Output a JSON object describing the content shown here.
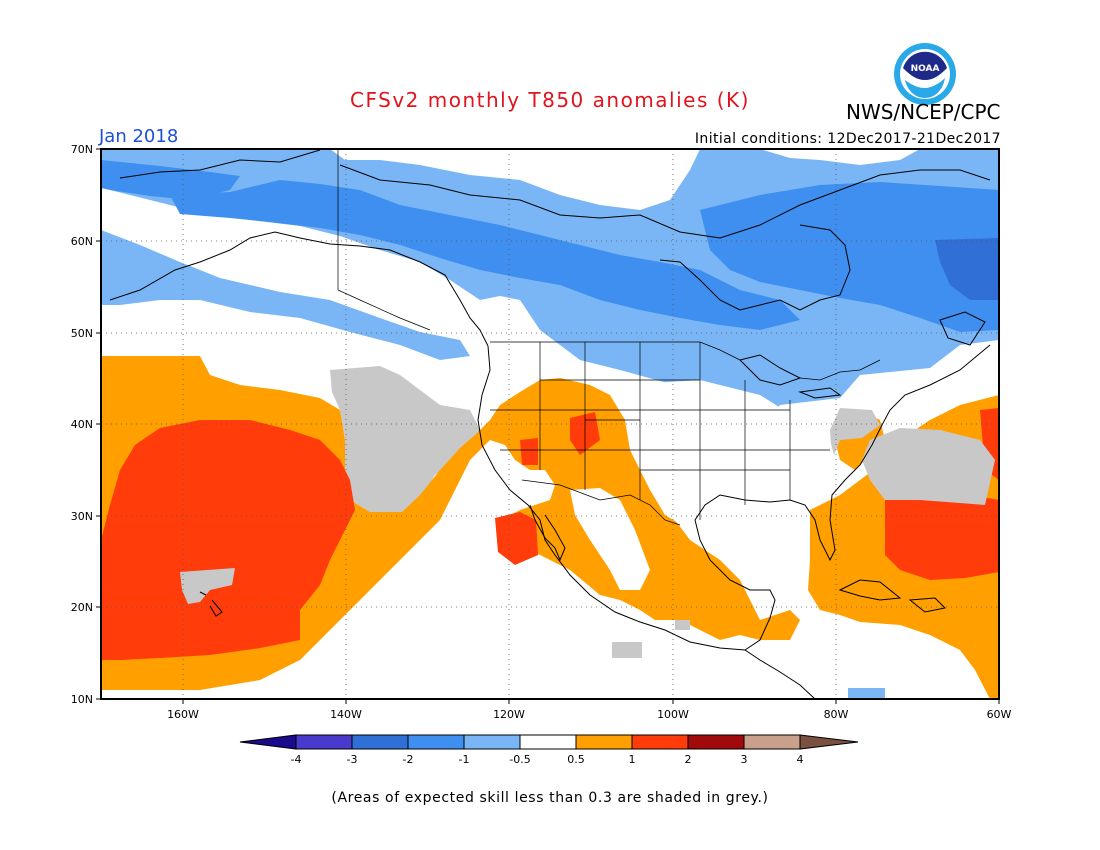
{
  "header": {
    "title": "CFSv2 monthly T850 anomalies (K)",
    "agency": "NWS/NCEP/CPC",
    "valid_month": "Jan 2018",
    "initial_conditions": "Initial conditions: 12Dec2017-21Dec2017",
    "logo_text": "NOAA"
  },
  "map": {
    "lat_ticks": [
      "70N",
      "60N",
      "50N",
      "40N",
      "30N",
      "20N",
      "10N"
    ],
    "lon_ticks": [
      "160W",
      "140W",
      "120W",
      "100W",
      "80W",
      "60W"
    ],
    "lat_range": [
      10,
      70
    ],
    "lon_range": [
      -170,
      -60
    ],
    "anomaly_regions": [
      {
        "category": "-1 to -0.5",
        "area": "Alaska, Canada and northern North Pacific"
      },
      {
        "category": "-2 to -1",
        "area": "northern Canada and central North Pacific"
      },
      {
        "category": "-3 to -2",
        "area": "Labrador"
      },
      {
        "category": "0.5 to 1",
        "area": "eastern North Pacific, Mexico, western Atlantic"
      },
      {
        "category": "1 to 2",
        "area": "central North Pacific near Hawaii, subtropical Atlantic"
      },
      {
        "category": "low skill",
        "area": "northeast Pacific and western Atlantic (grey)"
      }
    ]
  },
  "colorbar": {
    "labels": [
      "-4",
      "-3",
      "-2",
      "-1",
      "-0.5",
      "0.5",
      "1",
      "2",
      "3",
      "4"
    ],
    "colors": [
      "#1a0a8c",
      "#4a3acc",
      "#2f6fd6",
      "#3f8ff0",
      "#7ab6f5",
      "#ffffff",
      "#ffa000",
      "#ff3c0a",
      "#a00a0a",
      "#c8a08c",
      "#7a5040"
    ]
  },
  "palette": {
    "grey": "#c8c8c8",
    "blue_light": "#7ab6f5",
    "blue_mid": "#3f8ff0",
    "blue_dark": "#2f6fd6",
    "orange": "#ffa000",
    "red": "#ff3c0a",
    "title_red": "#e0141e",
    "label_blue": "#1f4fd6"
  },
  "footnote": "(Areas of expected skill less than 0.3 are shaded in grey.)"
}
